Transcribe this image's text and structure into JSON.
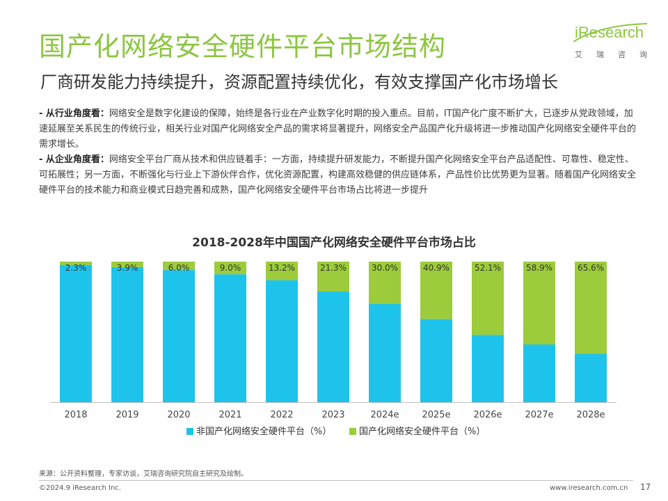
{
  "header": {
    "title": "国产化网络安全硬件平台市场结构",
    "subtitle": "厂商研发能力持续提升，资源配置持续优化，有效支撑国产化市场增长"
  },
  "logo": {
    "word": "iResearch",
    "cn_chars": [
      "艾",
      "瑞",
      "咨",
      "询"
    ]
  },
  "paragraphs": [
    {
      "head": "- 从行业角度看：",
      "text": "网络安全是数字化建设的保障，始终是各行业在产业数字化时期的投入重点。目前，IT国产化广度不断扩大，已逐步从党政领域，加速延展至关系民生的传统行业，相关行业对国产化网络安全产品的需求将显著提升，网络安全产品国产化升级将进一步推动国产化网络安全硬件平台的需求增长。"
    },
    {
      "head": "- 从企业角度看：",
      "text": "网络安全平台厂商从技术和供应链着手：一方面，持续提升研发能力，不断提升国产化网络安全平台产品适配性、可靠性、稳定性、可拓展性；另一方面，不断强化与行业上下游伙伴合作，优化资源配置，构建高效稳健的供应链体系，产品性价比优势更为显著。随着国产化网络安全硬件平台的技术能力和商业模式日趋完善和成熟，国产化网络安全硬件平台市场占比将进一步提升"
    }
  ],
  "chart_data": {
    "type": "bar",
    "stacked": true,
    "title": "2018-2028年中国国产化网络安全硬件平台市场占比",
    "categories": [
      "2018",
      "2019",
      "2020",
      "2021",
      "2022",
      "2023",
      "2024e",
      "2025e",
      "2026e",
      "2027e",
      "2028e"
    ],
    "series": [
      {
        "name": "非国产化网络安全硬件平台（%）",
        "color": "#1ec3ec",
        "values": [
          97.7,
          96.1,
          94.0,
          91.0,
          86.8,
          78.7,
          70.0,
          59.1,
          47.9,
          41.1,
          34.4
        ]
      },
      {
        "name": "国产化网络安全硬件平台（%）",
        "color": "#9ccb3b",
        "values": [
          2.3,
          3.9,
          6.0,
          9.0,
          13.2,
          21.3,
          30.0,
          40.9,
          52.1,
          58.9,
          65.6
        ],
        "labels": [
          "2.3%",
          "3.9%",
          "6.0%",
          "9.0%",
          "13.2%",
          "21.3%",
          "30.0%",
          "40.9%",
          "52.1%",
          "58.9%",
          "65.6%"
        ]
      }
    ],
    "ylim": [
      0,
      100
    ],
    "legend": "bottom",
    "grid": false
  },
  "footer": {
    "source": "来源：公开资料整理，专家访谈，艾瑞咨询研究院自主研究及绘制。",
    "copyright": "©2024.9 iResearch Inc.",
    "url": "www.iresearch.com.cn",
    "page": "17"
  }
}
